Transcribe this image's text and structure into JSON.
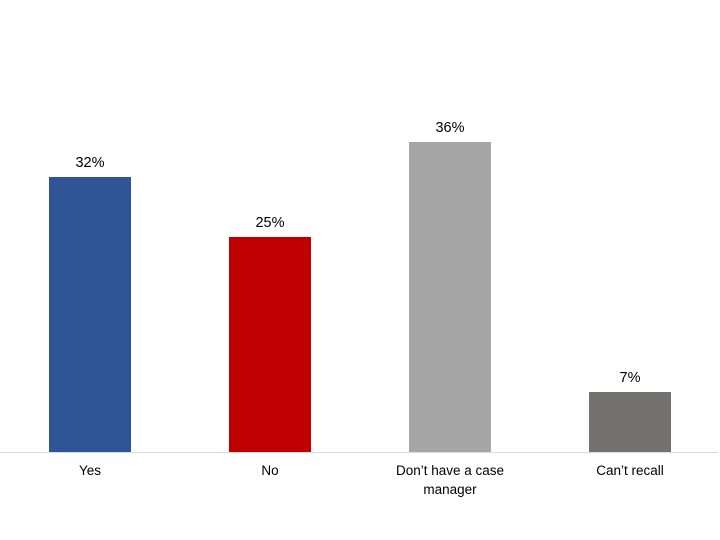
{
  "chart_data": {
    "type": "bar",
    "categories": [
      "Yes",
      "No",
      "Don’t have a case manager",
      "Can’t recall"
    ],
    "values": [
      32,
      25,
      36,
      7
    ],
    "value_labels": [
      "32%",
      "25%",
      "36%",
      "7%"
    ],
    "series_unit": "percent",
    "title": "",
    "xlabel": "",
    "ylabel": "",
    "ylim": [
      0,
      40
    ],
    "grid": false,
    "legend": false,
    "bar_colors": [
      "#2F5597",
      "#C00000",
      "#A6A6A6",
      "#767171"
    ],
    "axis_line_color": "#D9D9D9",
    "text_color": "#000000",
    "background_color": "#FFFFFF"
  }
}
